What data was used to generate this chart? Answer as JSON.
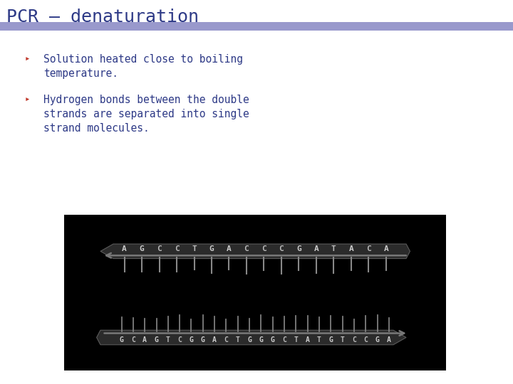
{
  "title": "PCR – denaturation",
  "title_color": "#2E3A87",
  "title_fontsize": 18,
  "header_bar_color": "#9999CC",
  "bullet_color": "#C0392B",
  "text_color": "#2E3A87",
  "bullet1_line1": "Solution heated close to boiling",
  "bullet1_line2": "temperature.",
  "bullet2_line1": "Hydrogen bonds between the double",
  "bullet2_line2": "strands are separated into single",
  "bullet2_line3": "strand molecules.",
  "bullet_symbol": "▸",
  "text_fontsize": 10.5,
  "bg_color": "#FFFFFF",
  "image_bg": "#000000",
  "strand1_text": "AGCCTGACCCGATACA",
  "strand2_text": "GCAGTCGGACTGGGCTATGTCCGA",
  "strand_color_normal": "#AAAAAA",
  "strand_highlight": "#AACCCC"
}
